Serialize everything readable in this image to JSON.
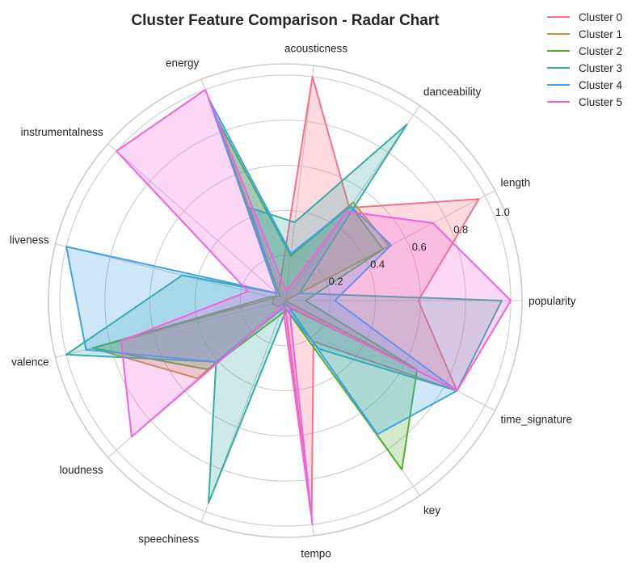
{
  "chart_data": {
    "type": "radar",
    "title": "Cluster Feature Comparison - Radar Chart",
    "axes": [
      "popularity",
      "length",
      "danceability",
      "acousticness",
      "energy",
      "instrumentalness",
      "liveness",
      "valence",
      "loudness",
      "speechiness",
      "tempo",
      "key",
      "time_signature"
    ],
    "r_ticks": [
      "0.2",
      "0.4",
      "0.6",
      "0.8",
      "1.0"
    ],
    "rlim": [
      0,
      1.05
    ],
    "grid": true,
    "legend_position": "top-right",
    "series": [
      {
        "name": "Cluster 0",
        "color": "#f77189",
        "values": [
          0.59,
          0.97,
          0.5,
          1.0,
          0.07,
          0.05,
          0.05,
          0.06,
          0.04,
          0.01,
          0.97,
          0.22,
          0.86
        ]
      },
      {
        "name": "Cluster 1",
        "color": "#bb9832",
        "values": [
          0.0,
          0.52,
          0.53,
          0.2,
          0.88,
          0.05,
          0.05,
          0.88,
          0.52,
          0.03,
          0.01,
          0.04,
          0.66
        ]
      },
      {
        "name": "Cluster 2",
        "color": "#50b131",
        "values": [
          0.09,
          0.49,
          0.51,
          0.2,
          0.88,
          0.03,
          0.07,
          0.88,
          0.46,
          0.07,
          0.04,
          0.91,
          0.66
        ]
      },
      {
        "name": "Cluster 3",
        "color": "#36ada4",
        "values": [
          0.96,
          0.07,
          0.95,
          0.35,
          0.44,
          0.05,
          0.47,
          1.0,
          0.41,
          0.96,
          0.04,
          0.26,
          0.86
        ]
      },
      {
        "name": "Cluster 4",
        "color": "#3ba3ec",
        "values": [
          0.22,
          0.53,
          0.51,
          0.21,
          0.96,
          0.05,
          1.0,
          0.91,
          0.41,
          0.04,
          0.01,
          0.72,
          0.86
        ]
      },
      {
        "name": "Cluster 5",
        "color": "#f461dd",
        "values": [
          1.0,
          0.74,
          0.48,
          0.04,
          1.0,
          1.0,
          0.17,
          0.75,
          0.91,
          0.03,
          1.0,
          0.03,
          0.86
        ]
      }
    ]
  }
}
